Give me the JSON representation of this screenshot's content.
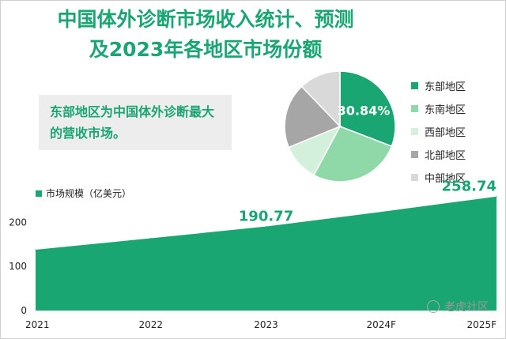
{
  "header": {
    "title_line1": "中国体外诊断市场收入统计、预测",
    "title_line2": "及2023年各地区市场份额"
  },
  "callout": {
    "text": "东部地区为中国体外诊断最大的营收市场。"
  },
  "badge": {
    "text": "老虎社区"
  },
  "colors": {
    "title": "#1aa673",
    "area": "#1aa673",
    "pie": [
      "#1aa673",
      "#8fd9a8",
      "#d3f0dd",
      "#a6a6a6",
      "#d9d9d9"
    ]
  },
  "chart_data": [
    {
      "type": "area",
      "legend": "市场规模（亿美元）",
      "categories": [
        "2021",
        "2022",
        "2023",
        "2024F",
        "2025F"
      ],
      "values": [
        138,
        164,
        190.77,
        224,
        258.74
      ],
      "data_labels": [
        {
          "index": 2,
          "text": "190.77"
        },
        {
          "index": 4,
          "text": "258.74"
        }
      ],
      "ylim": [
        0,
        260
      ],
      "yticks": [
        "0",
        "100",
        "200"
      ],
      "grid": false
    },
    {
      "type": "pie",
      "categories": [
        "东部地区",
        "东南地区",
        "西部地区",
        "北部地区",
        "中部地区"
      ],
      "values": [
        30.84,
        27,
        11,
        19,
        12.16
      ],
      "data_labels": [
        "30.84%"
      ],
      "legend_position": "right"
    }
  ]
}
